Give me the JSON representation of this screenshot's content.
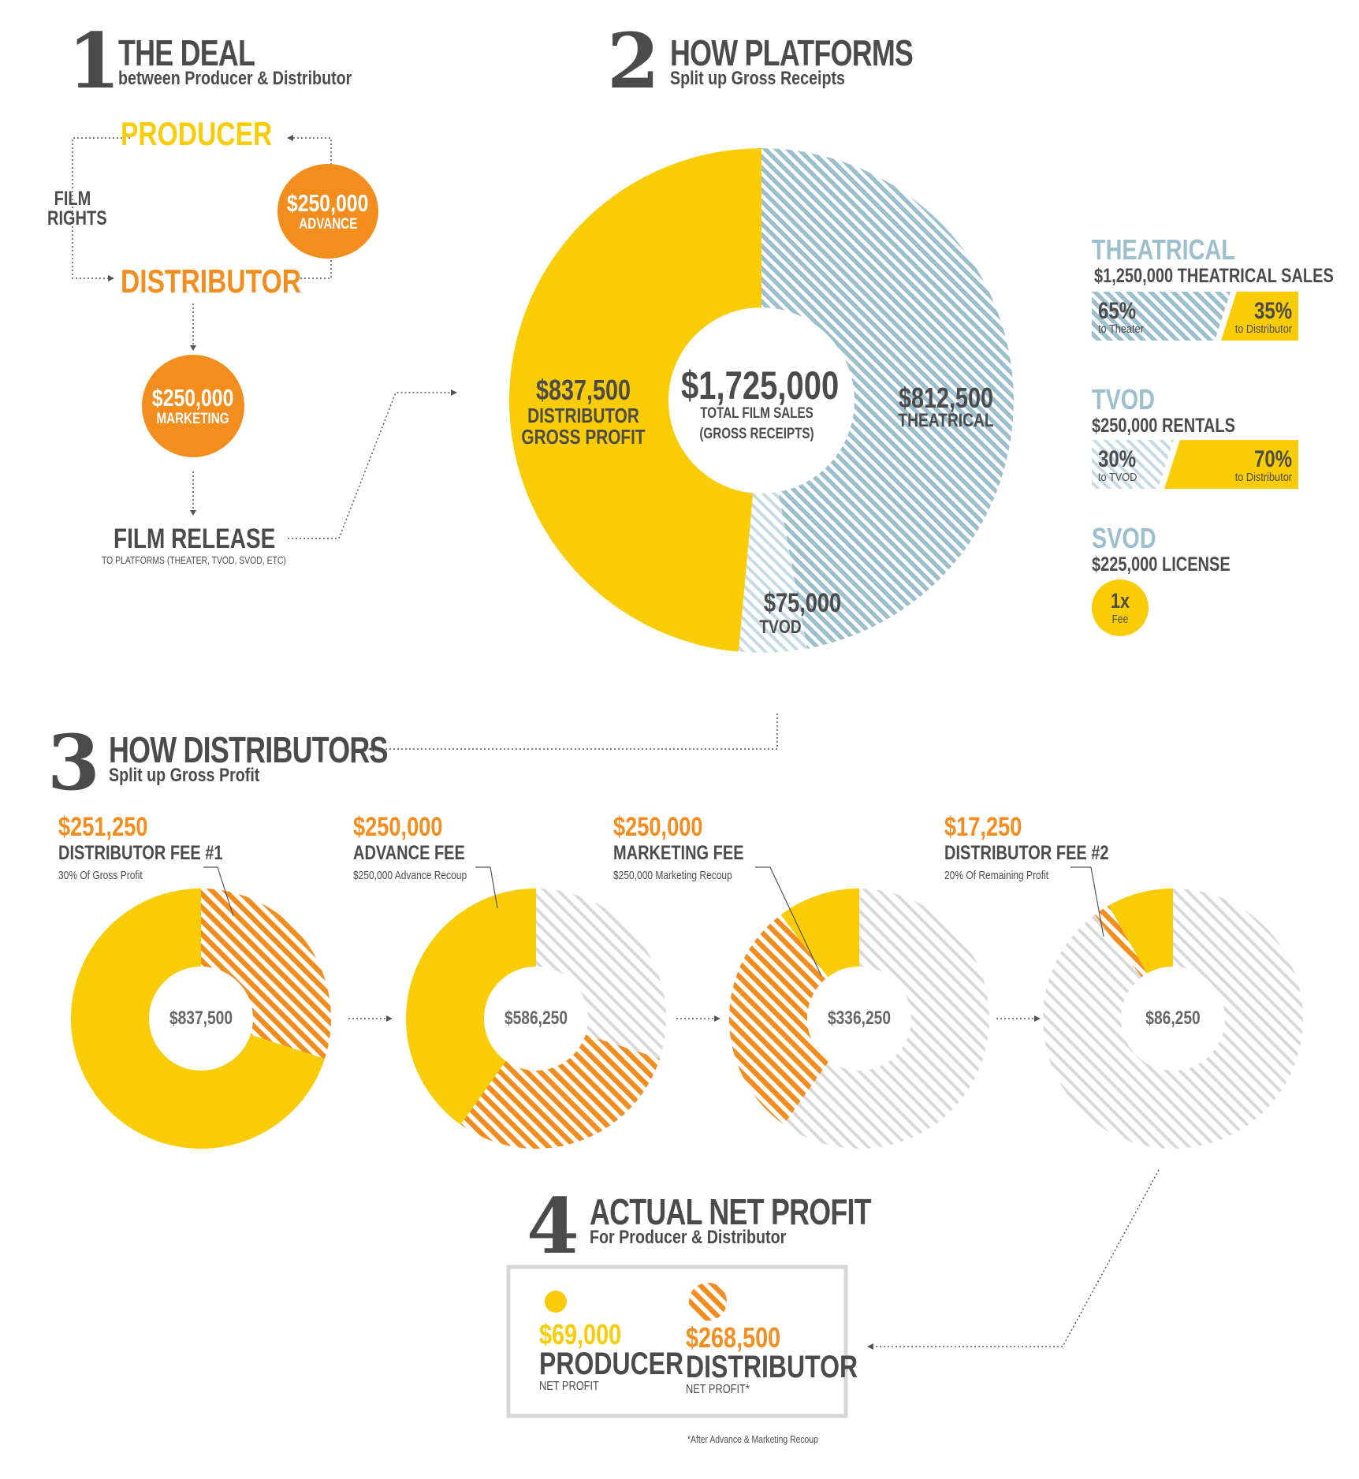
{
  "sections": {
    "deal": {
      "number": "1",
      "title": "THE DEAL",
      "subtitle": "between Producer & Distributor"
    },
    "platforms": {
      "number": "2",
      "title": "HOW PLATFORMS",
      "subtitle": "Split up Gross Receipts"
    },
    "distributors": {
      "number": "3",
      "title": "HOW DISTRIBUTORS",
      "subtitle": "Split up Gross Profit"
    },
    "net": {
      "number": "4",
      "title": "ACTUAL NET PROFIT",
      "subtitle": "For Producer & Distributor"
    }
  },
  "deal_flow": {
    "producer": "PRODUCER",
    "distributor": "DISTRIBUTOR",
    "film_rights": "FILM",
    "film_rights_2": "RIGHTS",
    "advance_amount": "$250,000",
    "advance_label": "ADVANCE",
    "marketing_amount": "$250,000",
    "marketing_label": "MARKETING",
    "release_title": "FILM RELEASE",
    "release_sub": "TO PLATFORMS (THEATER, TVOD, SVOD, ETC)"
  },
  "main_pie": {
    "center_amount": "$1,725,000",
    "center_label_1": "TOTAL FILM SALES",
    "center_label_2": "(GROSS RECEIPTS)",
    "distributor_amount": "$837,500",
    "distributor_label_1": "DISTRIBUTOR",
    "distributor_label_2": "GROSS PROFIT",
    "theatrical_amount": "$812,500",
    "theatrical_label": "THEATRICAL",
    "tvod_amount": "$75,000",
    "tvod_label": "TVOD"
  },
  "platform_legend": {
    "theatrical": {
      "title": "THEATRICAL",
      "detail": "$1,250,000 THEATRICAL SALES",
      "left_pct": "65%",
      "left_label": "to Theater",
      "right_pct": "35%",
      "right_label": "to Distributor",
      "left_share": 0.65
    },
    "tvod": {
      "title": "TVOD",
      "detail": "$250,000 RENTALS",
      "left_pct": "30%",
      "left_label": "to TVOD",
      "right_pct": "70%",
      "right_label": "to Distributor",
      "left_share": 0.3
    },
    "svod": {
      "title": "SVOD",
      "detail": "$225,000 LICENSE",
      "badge_top": "1x",
      "badge_bottom": "Fee"
    }
  },
  "fees": [
    {
      "amount": "$251,250",
      "title": "DISTRIBUTOR FEE #1",
      "note": "30% Of Gross Profit",
      "center": "$837,500"
    },
    {
      "amount": "$250,000",
      "title": "ADVANCE FEE",
      "note": "$250,000 Advance Recoup",
      "center": "$586,250"
    },
    {
      "amount": "$250,000",
      "title": "MARKETING FEE",
      "note": "$250,000 Marketing Recoup",
      "center": "$336,250"
    },
    {
      "amount": "$17,250",
      "title": "DISTRIBUTOR FEE #2",
      "note": "20% Of Remaining Profit",
      "center": "$86,250"
    }
  ],
  "net_profit": {
    "producer_amount": "$69,000",
    "producer_label": "PRODUCER",
    "producer_sub": "NET PROFIT",
    "distributor_amount": "$268,500",
    "distributor_label": "DISTRIBUTOR",
    "distributor_sub": "NET PROFIT*",
    "footnote": "*After Advance & Marketing Recoup"
  },
  "colors": {
    "yellow": "#f9cc06",
    "orange": "#f28d1e",
    "blue": "#9cbfcd",
    "light_gray": "#dcdcdc",
    "dark": "#4b4b4b"
  },
  "chart_data": {
    "type": "pie",
    "total": 1725000,
    "slices": [
      {
        "name": "DISTRIBUTOR GROSS PROFIT",
        "value": 837500
      },
      {
        "name": "THEATRICAL",
        "value": 812500
      },
      {
        "name": "TVOD",
        "value": 75000
      }
    ],
    "waterfall": [
      {
        "start": 837500,
        "fee": 251250
      },
      {
        "start": 586250,
        "fee": 250000
      },
      {
        "start": 336250,
        "fee": 250000
      },
      {
        "start": 86250,
        "fee": 17250
      }
    ]
  }
}
